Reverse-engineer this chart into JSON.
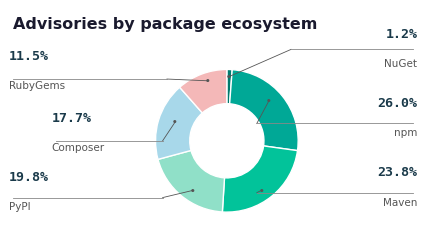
{
  "title": "Advisories by package ecosystem",
  "slices": [
    {
      "label": "NuGet",
      "pct": 1.2,
      "color": "#007a6e"
    },
    {
      "label": "npm",
      "pct": 26.0,
      "color": "#00a896"
    },
    {
      "label": "Maven",
      "pct": 23.8,
      "color": "#02c39a"
    },
    {
      "label": "PyPI",
      "pct": 19.8,
      "color": "#90e0c8"
    },
    {
      "label": "Composer",
      "pct": 17.7,
      "color": "#a8d8ea"
    },
    {
      "label": "RubyGems",
      "pct": 11.5,
      "color": "#f4b8b8"
    }
  ],
  "bg_color": "#ffffff",
  "title_color": "#1a1a2e",
  "pct_color": "#1a3a4a",
  "label_color": "#555555",
  "line_color": "#555555",
  "title_fontsize": 11.5,
  "pct_fontsize": 9.5,
  "label_fontsize": 7.5
}
